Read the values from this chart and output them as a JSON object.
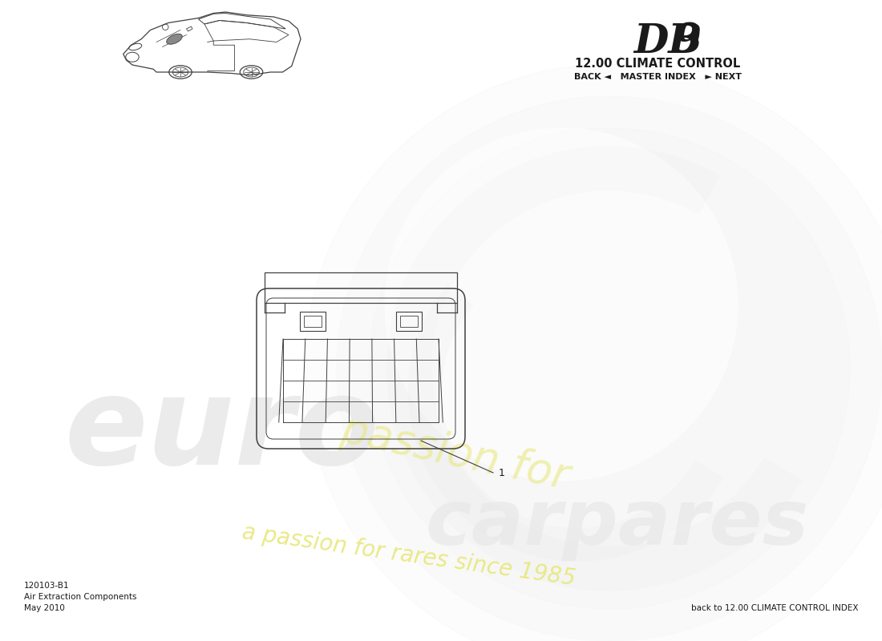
{
  "title_db9_main": "DB",
  "title_db9_num": "9",
  "title_section": "12.00 CLIMATE CONTROL",
  "nav_text": "BACK ◄   MASTER INDEX   ► NEXT",
  "part_number": "120103-B1",
  "part_name": "Air Extraction Components",
  "date": "May 2010",
  "bottom_right_text": "back to 12.00 CLIMATE CONTROL INDEX",
  "part_label": "1",
  "bg_color": "#ffffff",
  "line_color": "#404040",
  "text_color": "#1a1a1a",
  "wm_gray": "#e8e8e8",
  "wm_yellow": "#e8e880",
  "wm_light": "#efefef"
}
